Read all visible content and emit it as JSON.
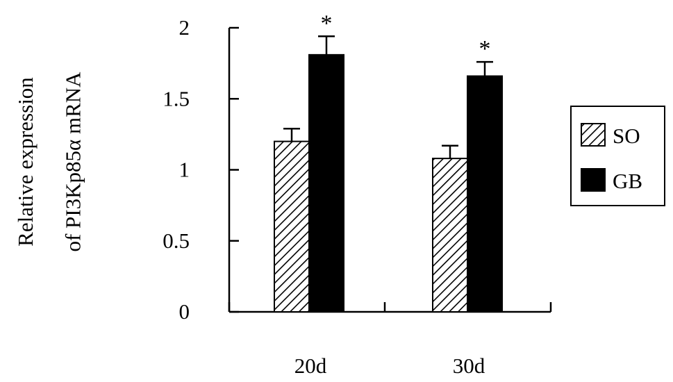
{
  "chart_data": {
    "type": "bar",
    "categories": [
      "20d",
      "30d"
    ],
    "series": [
      {
        "name": "SO",
        "values": [
          1.2,
          1.08
        ],
        "errors": [
          0.09,
          0.09
        ],
        "pattern": "hatched"
      },
      {
        "name": "GB",
        "values": [
          1.81,
          1.66
        ],
        "errors": [
          0.13,
          0.1
        ],
        "pattern": "solid"
      }
    ],
    "annotations": [
      "*",
      "*"
    ],
    "ylabel": [
      "Relative expression",
      "of PI3Kp85α mRNA"
    ],
    "xlabel": "",
    "ylim": [
      0,
      2
    ],
    "yticks": [
      "0",
      "0.5",
      "1",
      "1.5",
      "2"
    ],
    "grid": false,
    "legend": "right",
    "colors": {
      "bar_solid": "#000000",
      "hatch": "#000000",
      "hatch_bg": "#ffffff"
    }
  }
}
